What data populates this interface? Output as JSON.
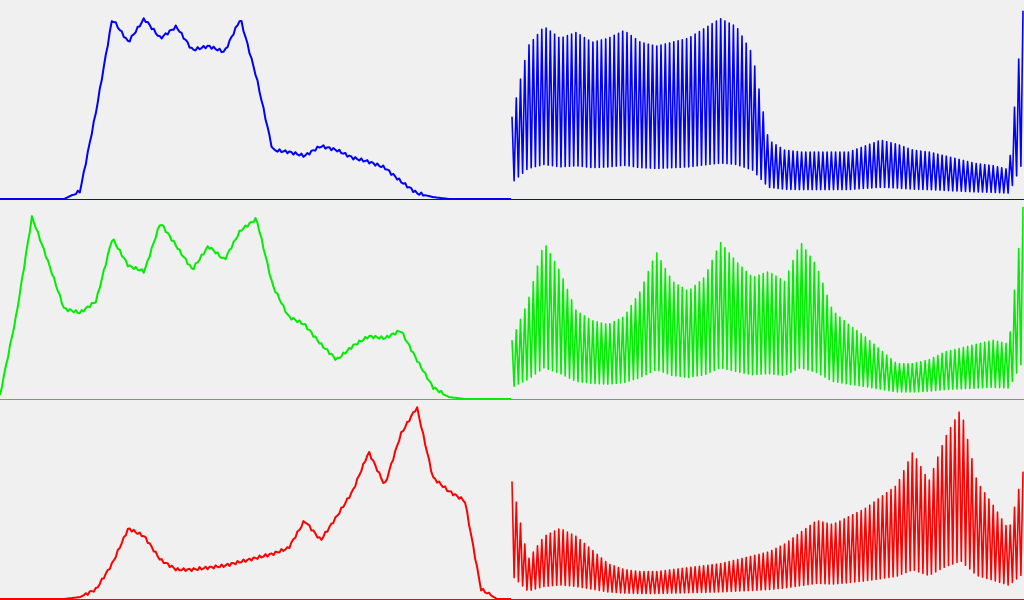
{
  "background": "#f0f0f0",
  "chart_data": [
    {
      "type": "line",
      "panel": "top-left",
      "color": "#0000ff",
      "xlim": [
        0,
        255
      ],
      "ylim": [
        0,
        1
      ],
      "x": [
        0,
        8,
        16,
        24,
        32,
        40,
        48,
        56,
        64,
        72,
        80,
        88,
        96,
        104,
        112,
        120,
        128,
        136,
        144,
        152,
        160,
        168,
        176,
        184,
        192,
        200,
        208,
        216,
        224,
        232,
        240,
        248,
        255
      ],
      "values": [
        0,
        0,
        0,
        0,
        0,
        0.04,
        0.45,
        0.92,
        0.8,
        0.92,
        0.82,
        0.88,
        0.76,
        0.78,
        0.75,
        0.92,
        0.62,
        0.25,
        0.24,
        0.22,
        0.27,
        0.25,
        0.21,
        0.19,
        0.16,
        0.09,
        0.03,
        0.01,
        0,
        0,
        0,
        0,
        0
      ]
    },
    {
      "type": "line",
      "panel": "top-right",
      "color": "#0000ff",
      "comb": true,
      "xlim": [
        0,
        255
      ],
      "ylim": [
        0,
        1
      ],
      "x": [
        0,
        8,
        16,
        24,
        32,
        40,
        48,
        56,
        64,
        72,
        80,
        88,
        96,
        104,
        112,
        120,
        128,
        136,
        144,
        152,
        160,
        168,
        176,
        184,
        192,
        200,
        208,
        216,
        224,
        232,
        240,
        248,
        255
      ],
      "values": [
        0.42,
        0.78,
        0.88,
        0.82,
        0.85,
        0.8,
        0.82,
        0.86,
        0.8,
        0.78,
        0.8,
        0.82,
        0.87,
        0.92,
        0.88,
        0.74,
        0.3,
        0.25,
        0.24,
        0.24,
        0.24,
        0.24,
        0.27,
        0.3,
        0.28,
        0.25,
        0.24,
        0.22,
        0.2,
        0.18,
        0.17,
        0.15,
        0.96
      ]
    },
    {
      "type": "line",
      "panel": "middle-left",
      "color": "#00ee00",
      "xlim": [
        0,
        255
      ],
      "ylim": [
        0,
        1
      ],
      "x": [
        0,
        8,
        16,
        24,
        32,
        40,
        48,
        56,
        64,
        72,
        80,
        88,
        96,
        104,
        112,
        120,
        128,
        136,
        144,
        152,
        160,
        168,
        176,
        184,
        192,
        200,
        208,
        216,
        224,
        232,
        240,
        248,
        255
      ],
      "values": [
        0.02,
        0.42,
        0.93,
        0.7,
        0.46,
        0.44,
        0.5,
        0.82,
        0.68,
        0.65,
        0.9,
        0.78,
        0.66,
        0.78,
        0.71,
        0.86,
        0.92,
        0.58,
        0.42,
        0.38,
        0.28,
        0.2,
        0.27,
        0.32,
        0.31,
        0.35,
        0.2,
        0.06,
        0.01,
        0,
        0,
        0,
        0
      ]
    },
    {
      "type": "line",
      "panel": "middle-right",
      "color": "#00ee00",
      "comb": true,
      "xlim": [
        0,
        255
      ],
      "ylim": [
        0,
        1
      ],
      "x": [
        0,
        8,
        16,
        24,
        32,
        40,
        48,
        56,
        64,
        72,
        80,
        88,
        96,
        104,
        112,
        120,
        128,
        136,
        144,
        152,
        160,
        168,
        176,
        184,
        192,
        200,
        208,
        216,
        224,
        232,
        240,
        248,
        255
      ],
      "values": [
        0.3,
        0.5,
        0.8,
        0.65,
        0.45,
        0.4,
        0.38,
        0.42,
        0.55,
        0.75,
        0.6,
        0.55,
        0.62,
        0.8,
        0.7,
        0.62,
        0.65,
        0.6,
        0.8,
        0.68,
        0.45,
        0.38,
        0.32,
        0.25,
        0.18,
        0.18,
        0.2,
        0.24,
        0.26,
        0.28,
        0.3,
        0.28,
        0.98
      ]
    },
    {
      "type": "line",
      "panel": "bottom-left",
      "color": "#ff0000",
      "xlim": [
        0,
        255
      ],
      "ylim": [
        0,
        1
      ],
      "x": [
        0,
        8,
        16,
        24,
        32,
        40,
        48,
        56,
        64,
        72,
        80,
        88,
        96,
        104,
        112,
        120,
        128,
        136,
        144,
        152,
        160,
        168,
        176,
        184,
        192,
        200,
        208,
        216,
        224,
        232,
        240,
        248,
        255
      ],
      "values": [
        0,
        0,
        0,
        0,
        0,
        0.01,
        0.05,
        0.18,
        0.36,
        0.32,
        0.2,
        0.15,
        0.15,
        0.16,
        0.17,
        0.19,
        0.21,
        0.23,
        0.26,
        0.4,
        0.3,
        0.42,
        0.55,
        0.75,
        0.58,
        0.84,
        0.98,
        0.62,
        0.55,
        0.5,
        0.05,
        0,
        0
      ]
    },
    {
      "type": "line",
      "panel": "bottom-right",
      "color": "#ff0000",
      "comb": true,
      "xlim": [
        0,
        255
      ],
      "ylim": [
        0,
        1
      ],
      "x": [
        0,
        8,
        16,
        24,
        32,
        40,
        48,
        56,
        64,
        72,
        80,
        88,
        96,
        104,
        112,
        120,
        128,
        136,
        144,
        152,
        160,
        168,
        176,
        184,
        192,
        200,
        208,
        216,
        224,
        232,
        240,
        248,
        255
      ],
      "values": [
        0.6,
        0.2,
        0.32,
        0.36,
        0.32,
        0.25,
        0.18,
        0.15,
        0.14,
        0.14,
        0.15,
        0.16,
        0.17,
        0.18,
        0.2,
        0.22,
        0.24,
        0.28,
        0.34,
        0.4,
        0.38,
        0.42,
        0.46,
        0.52,
        0.58,
        0.75,
        0.6,
        0.82,
        0.97,
        0.6,
        0.48,
        0.35,
        0.65
      ]
    }
  ]
}
